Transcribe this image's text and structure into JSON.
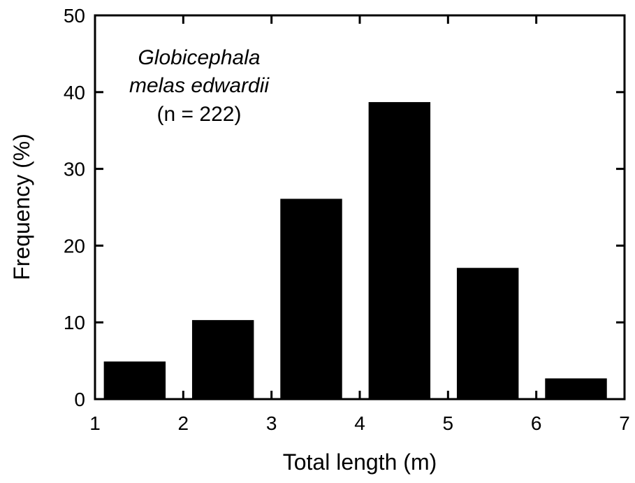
{
  "chart_data": {
    "type": "bar",
    "bin_edges": [
      1.1,
      1.8,
      2.1,
      2.8,
      3.1,
      3.8,
      4.1,
      4.8,
      5.1,
      5.8,
      6.1,
      6.8
    ],
    "bins": [
      {
        "x_start": 1.1,
        "x_end": 1.8,
        "value": 4.9
      },
      {
        "x_start": 2.1,
        "x_end": 2.8,
        "value": 10.3
      },
      {
        "x_start": 3.1,
        "x_end": 3.8,
        "value": 26.1
      },
      {
        "x_start": 4.1,
        "x_end": 4.8,
        "value": 38.7
      },
      {
        "x_start": 5.1,
        "x_end": 5.8,
        "value": 17.1
      },
      {
        "x_start": 6.1,
        "x_end": 6.8,
        "value": 2.7
      }
    ],
    "xlabel": "Total length (m)",
    "ylabel": "Frequency (%)",
    "xlim": [
      1,
      7
    ],
    "ylim": [
      0,
      50
    ],
    "xticks": [
      "1",
      "2",
      "3",
      "4",
      "5",
      "6",
      "7"
    ],
    "yticks": [
      "0",
      "10",
      "20",
      "30",
      "40",
      "50"
    ],
    "grid": false,
    "annotation": {
      "line1": "Globicephala",
      "line2": "melas edwardii",
      "line3": "(n = 222)"
    },
    "colors": {
      "bar": "#000000",
      "axis": "#000000",
      "background": "#ffffff"
    }
  }
}
